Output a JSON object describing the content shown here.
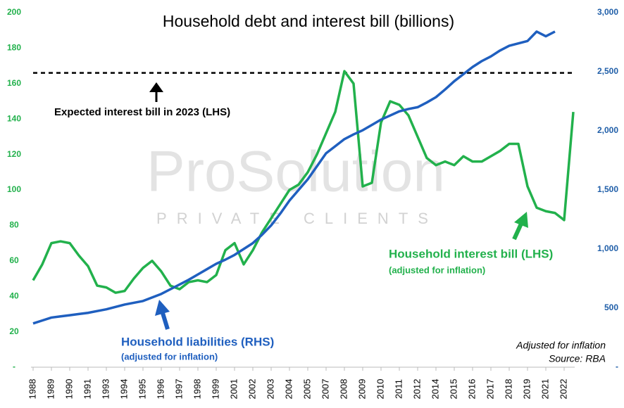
{
  "chart_data": {
    "type": "line",
    "title": "Household debt and interest bill (billions)",
    "categories": [
      "1988",
      null,
      "1989",
      null,
      "1990",
      null,
      "1991",
      null,
      "1993",
      null,
      "1994",
      null,
      "1995",
      null,
      "1996",
      null,
      "1997",
      null,
      "1998",
      null,
      "1999",
      null,
      "2001",
      null,
      "2002",
      null,
      "2003",
      null,
      "2004",
      null,
      "2005",
      null,
      "2007",
      null,
      "2008",
      null,
      "2009",
      null,
      "2010",
      null,
      "2011",
      null,
      "2012",
      null,
      "2014",
      null,
      "2015",
      null,
      "2016",
      null,
      "2017",
      null,
      "2018",
      null,
      "2019",
      null,
      "2021",
      null,
      "2022",
      null
    ],
    "series": [
      {
        "name": "Household interest bill (LHS)",
        "color": "#22b14c",
        "axis": "y",
        "values": [
          49,
          58,
          70,
          71,
          70,
          63,
          57,
          46,
          45,
          42,
          43,
          50,
          56,
          60,
          54,
          46,
          44,
          48,
          49,
          48,
          52,
          66,
          70,
          58,
          66,
          76,
          84,
          92,
          100,
          103,
          110,
          120,
          132,
          144,
          167,
          160,
          102,
          104,
          138,
          150,
          148,
          142,
          130,
          118,
          114,
          116,
          114,
          119,
          116,
          116,
          119,
          122,
          126,
          126,
          102,
          90,
          88,
          87,
          83,
          144
        ]
      },
      {
        "name": "Household liabilities (RHS)",
        "color": "#1f5fbf",
        "axis": "y2",
        "values": [
          370,
          395,
          420,
          430,
          440,
          450,
          460,
          475,
          490,
          510,
          530,
          545,
          560,
          590,
          620,
          660,
          700,
          740,
          785,
          830,
          875,
          910,
          950,
          1000,
          1050,
          1120,
          1200,
          1300,
          1410,
          1500,
          1590,
          1700,
          1810,
          1870,
          1930,
          1970,
          2005,
          2050,
          2095,
          2130,
          2165,
          2185,
          2200,
          2240,
          2285,
          2350,
          2420,
          2480,
          2540,
          2590,
          2630,
          2680,
          2720,
          2740,
          2760,
          2840,
          2800,
          2840,
          null,
          null
        ]
      }
    ],
    "ylim": [
      0,
      200
    ],
    "yticks": [
      {
        "value": 0,
        "label": "-"
      },
      20,
      40,
      60,
      80,
      100,
      120,
      140,
      160,
      180,
      200
    ],
    "y2lim": [
      0,
      3000
    ],
    "y2ticks": [
      {
        "value": 0,
        "label": "-"
      },
      500,
      {
        "value": 1000,
        "label": "1,000"
      },
      {
        "value": 1500,
        "label": "1,500"
      },
      {
        "value": 2000,
        "label": "2,000"
      },
      {
        "value": 2500,
        "label": "2,500"
      },
      {
        "value": 3000,
        "label": "3,000"
      }
    ],
    "reference_line": {
      "value": 166,
      "label": "Expected interest bill in 2023 (LHS)"
    },
    "series_note": "(adjusted for inflation)",
    "footnote": "Adjusted for inflation",
    "source": "Source: RBA",
    "watermark": {
      "brand": "ProSolution",
      "tagline": "PRIVATE CLIENTS"
    }
  }
}
